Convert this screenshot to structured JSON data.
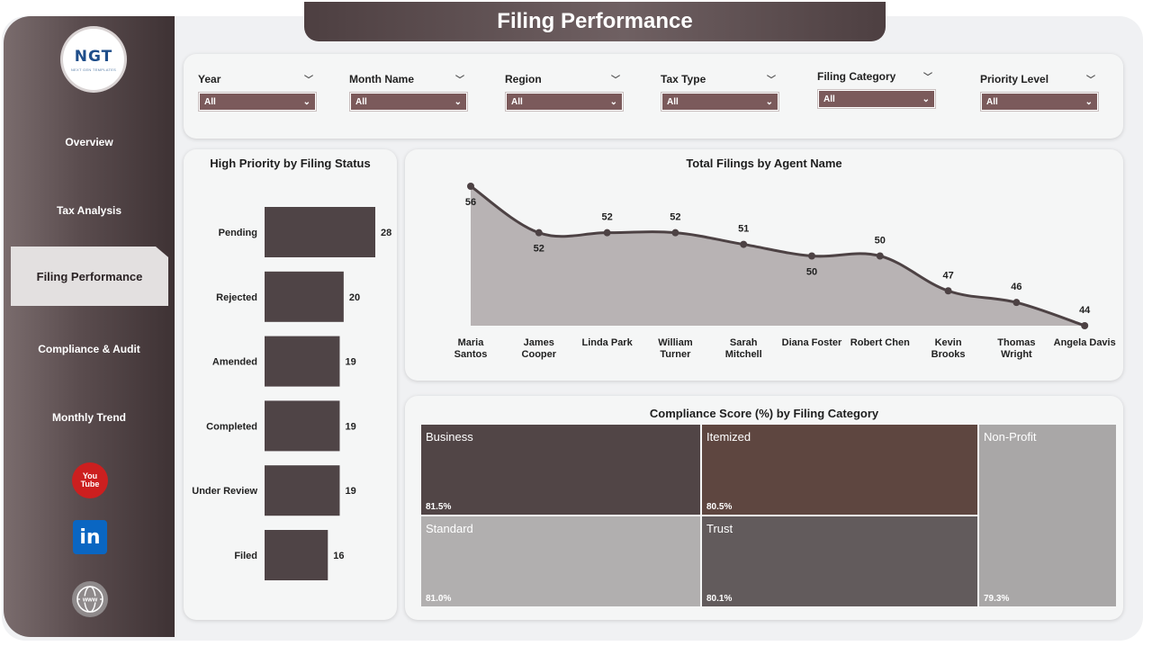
{
  "header": {
    "title": "Filing Performance"
  },
  "logo": {
    "text": "NGT",
    "tagline": "NEXT GEN TEMPLATES"
  },
  "sidebar": {
    "items": [
      {
        "label": "Overview"
      },
      {
        "label": "Tax Analysis"
      },
      {
        "label": "Filing Performance"
      },
      {
        "label": "Compliance & Audit"
      },
      {
        "label": "Monthly Trend"
      }
    ],
    "active_index": 2,
    "social": [
      {
        "icon": "youtube-icon",
        "line1": "You",
        "line2": "Tube"
      },
      {
        "icon": "linkedin-icon",
        "text": "in"
      },
      {
        "icon": "globe-www-icon",
        "text": "www"
      }
    ]
  },
  "filters": [
    {
      "label": "Year",
      "value": "All"
    },
    {
      "label": "Month Name",
      "value": "All"
    },
    {
      "label": "Region",
      "value": "All"
    },
    {
      "label": "Tax Type",
      "value": "All"
    },
    {
      "label": "Filing Category",
      "value": "All"
    },
    {
      "label": "Priority Level",
      "value": "All"
    }
  ],
  "colors": {
    "accent": "#4f4446",
    "filter_bg": "#7b5a5b",
    "area_fill": "#b8b3b4",
    "line": "#4d4244"
  },
  "chart_data": [
    {
      "type": "bar",
      "title": "High Priority by Filing Status",
      "orientation": "horizontal",
      "categories": [
        "Pending",
        "Rejected",
        "Amended",
        "Completed",
        "Under Review",
        "Filed"
      ],
      "values": [
        28,
        20,
        19,
        19,
        19,
        16
      ]
    },
    {
      "type": "area",
      "title": "Total Filings by Agent Name",
      "categories": [
        "Maria Santos",
        "James Cooper",
        "Linda Park",
        "William Turner",
        "Sarah Mitchell",
        "Diana Foster",
        "Robert Chen",
        "Kevin Brooks",
        "Thomas Wright",
        "Angela Davis"
      ],
      "category_lines": [
        [
          "Maria",
          "Santos"
        ],
        [
          "James",
          "Cooper"
        ],
        [
          "Linda Park"
        ],
        [
          "William",
          "Turner"
        ],
        [
          "Sarah",
          "Mitchell"
        ],
        [
          "Diana Foster"
        ],
        [
          "Robert Chen"
        ],
        [
          "Kevin",
          "Brooks"
        ],
        [
          "Thomas",
          "Wright"
        ],
        [
          "Angela Davis"
        ]
      ],
      "values": [
        56,
        52,
        52,
        52,
        51,
        50,
        50,
        47,
        46,
        44
      ]
    },
    {
      "type": "treemap",
      "title": "Compliance Score (%) by Filing Category",
      "items": [
        {
          "name": "Business",
          "value": "81.5%",
          "color": "#514546"
        },
        {
          "name": "Itemized",
          "value": "80.5%",
          "color": "#5e4640"
        },
        {
          "name": "Non-Profit",
          "value": "79.3%",
          "color": "#a9a7a7"
        },
        {
          "name": "Standard",
          "value": "81.0%",
          "color": "#b1afaf"
        },
        {
          "name": "Trust",
          "value": "80.1%",
          "color": "#625b5c"
        }
      ]
    }
  ]
}
